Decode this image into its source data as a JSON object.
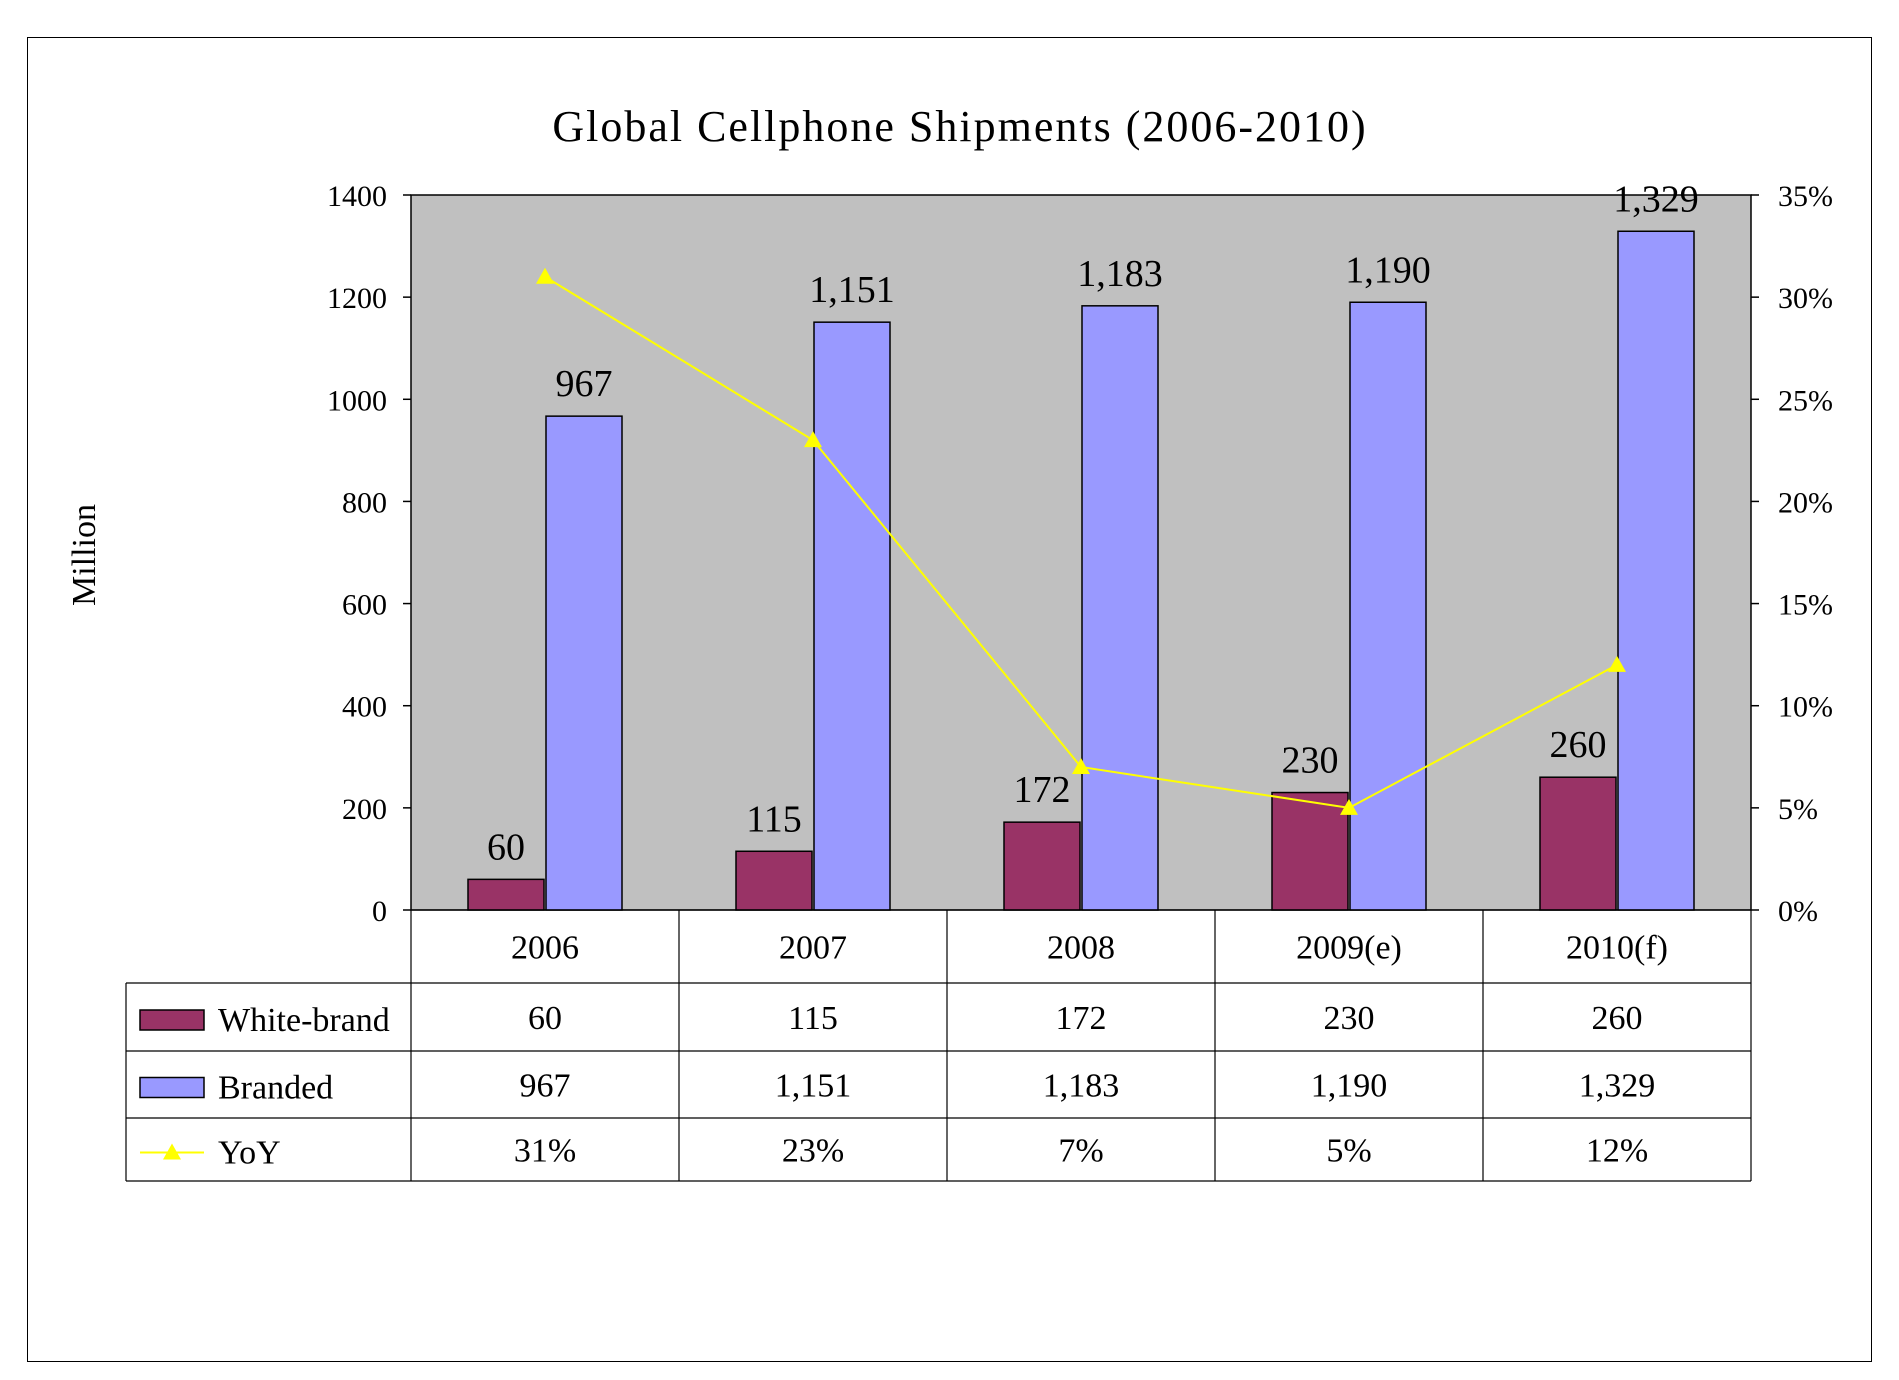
{
  "chart_data": {
    "type": "bar",
    "title": "Global Cellphone Shipments (2006-2010)",
    "ylabel": "Million",
    "ylim": [
      0,
      1400
    ],
    "yticks": [
      "0",
      "200",
      "400",
      "600",
      "800",
      "1000",
      "1200",
      "1400"
    ],
    "y2lim": [
      0,
      0.35
    ],
    "y2ticks": [
      "0%",
      "5%",
      "10%",
      "15%",
      "20%",
      "25%",
      "30%",
      "35%"
    ],
    "categories": [
      "2006",
      "2007",
      "2008",
      "2009(e)",
      "2010(f)"
    ],
    "series": [
      {
        "name": "White-brand",
        "type": "bar",
        "color": "#993366",
        "values": [
          60,
          115,
          172,
          230,
          260
        ],
        "labels": [
          "60",
          "115",
          "172",
          "230",
          "260"
        ]
      },
      {
        "name": "Branded",
        "type": "bar",
        "color": "#9999FF",
        "values": [
          967,
          1151,
          1183,
          1190,
          1329
        ],
        "labels": [
          "967",
          "1,151",
          "1,183",
          "1,190",
          "1,329"
        ]
      },
      {
        "name": "YoY",
        "type": "line",
        "axis": "right",
        "color": "#FFFF00",
        "values": [
          0.31,
          0.23,
          0.07,
          0.05,
          0.12
        ],
        "labels": [
          "31%",
          "23%",
          "7%",
          "5%",
          "12%"
        ]
      }
    ],
    "plot_background": "#C0C0C0",
    "grid": false,
    "legend": "data-table"
  }
}
